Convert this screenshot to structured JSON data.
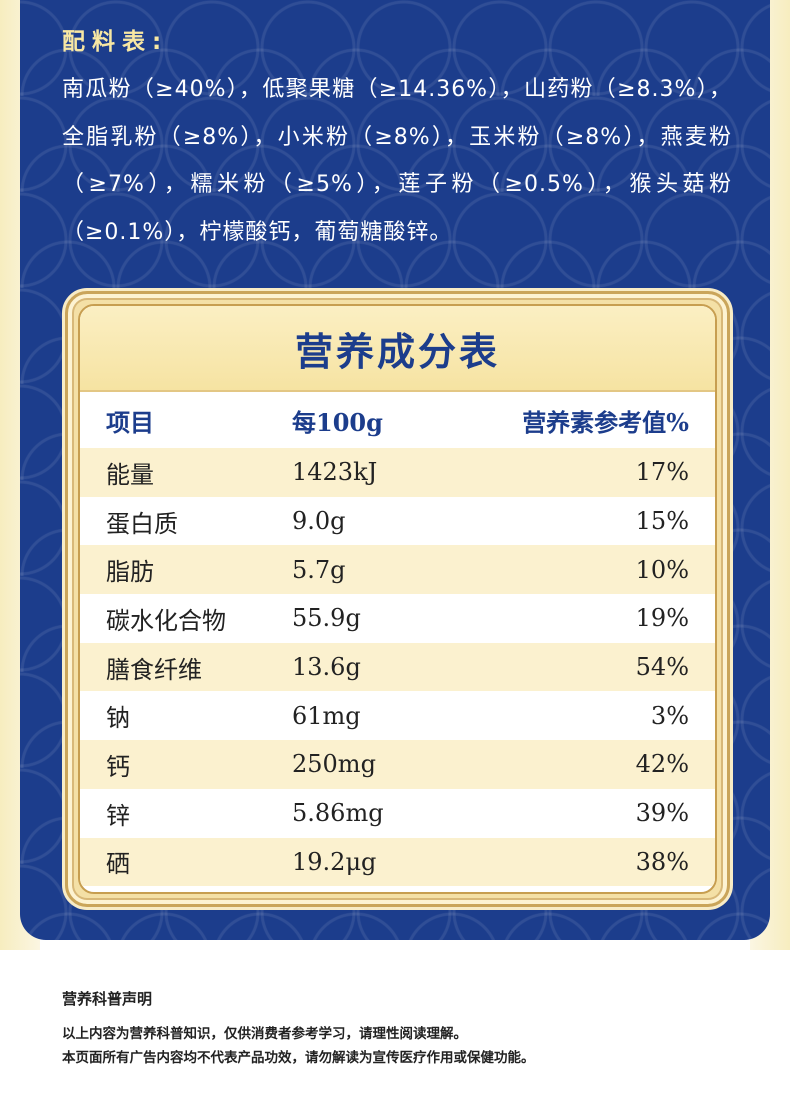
{
  "ingredients": {
    "title": "配料表:",
    "text": "南瓜粉（≥40%），低聚果糖（≥14.36%），山药粉（≥8.3%），全脂乳粉（≥8%），小米粉（≥8%），玉米粉（≥8%），燕麦粉（≥7%），糯米粉（≥5%），莲子粉（≥0.5%），猴头菇粉（≥0.1%），柠檬酸钙，葡萄糖酸锌。"
  },
  "nutrition": {
    "title": "营养成分表",
    "headers": {
      "item": "项目",
      "per100g": "每100g",
      "nrv": "营养素参考值%"
    },
    "rows": [
      {
        "item": "能量",
        "per100g": "1423kJ",
        "nrv": "17%"
      },
      {
        "item": "蛋白质",
        "per100g": "9.0g",
        "nrv": "15%"
      },
      {
        "item": "脂肪",
        "per100g": "5.7g",
        "nrv": "10%"
      },
      {
        "item": "碳水化合物",
        "per100g": "55.9g",
        "nrv": "19%"
      },
      {
        "item": "膳食纤维",
        "per100g": "13.6g",
        "nrv": "54%"
      },
      {
        "item": "钠",
        "per100g": "61mg",
        "nrv": "3%"
      },
      {
        "item": "钙",
        "per100g": "250mg",
        "nrv": "42%"
      },
      {
        "item": "锌",
        "per100g": "5.86mg",
        "nrv": "39%"
      },
      {
        "item": "硒",
        "per100g": "19.2μg",
        "nrv": "38%"
      }
    ]
  },
  "disclaimer": {
    "title": "营养科普声明",
    "line1": "以上内容为营养科普知识，仅供消费者参考学习，请理性阅读理解。",
    "line2": "本页面所有广告内容均不代表产品功效，请勿解读为宣传医疗作用或保健功能。"
  },
  "colors": {
    "panel_blue": "#1c3d8c",
    "gold": "#caa55a",
    "cream": "#fbf1cf"
  }
}
